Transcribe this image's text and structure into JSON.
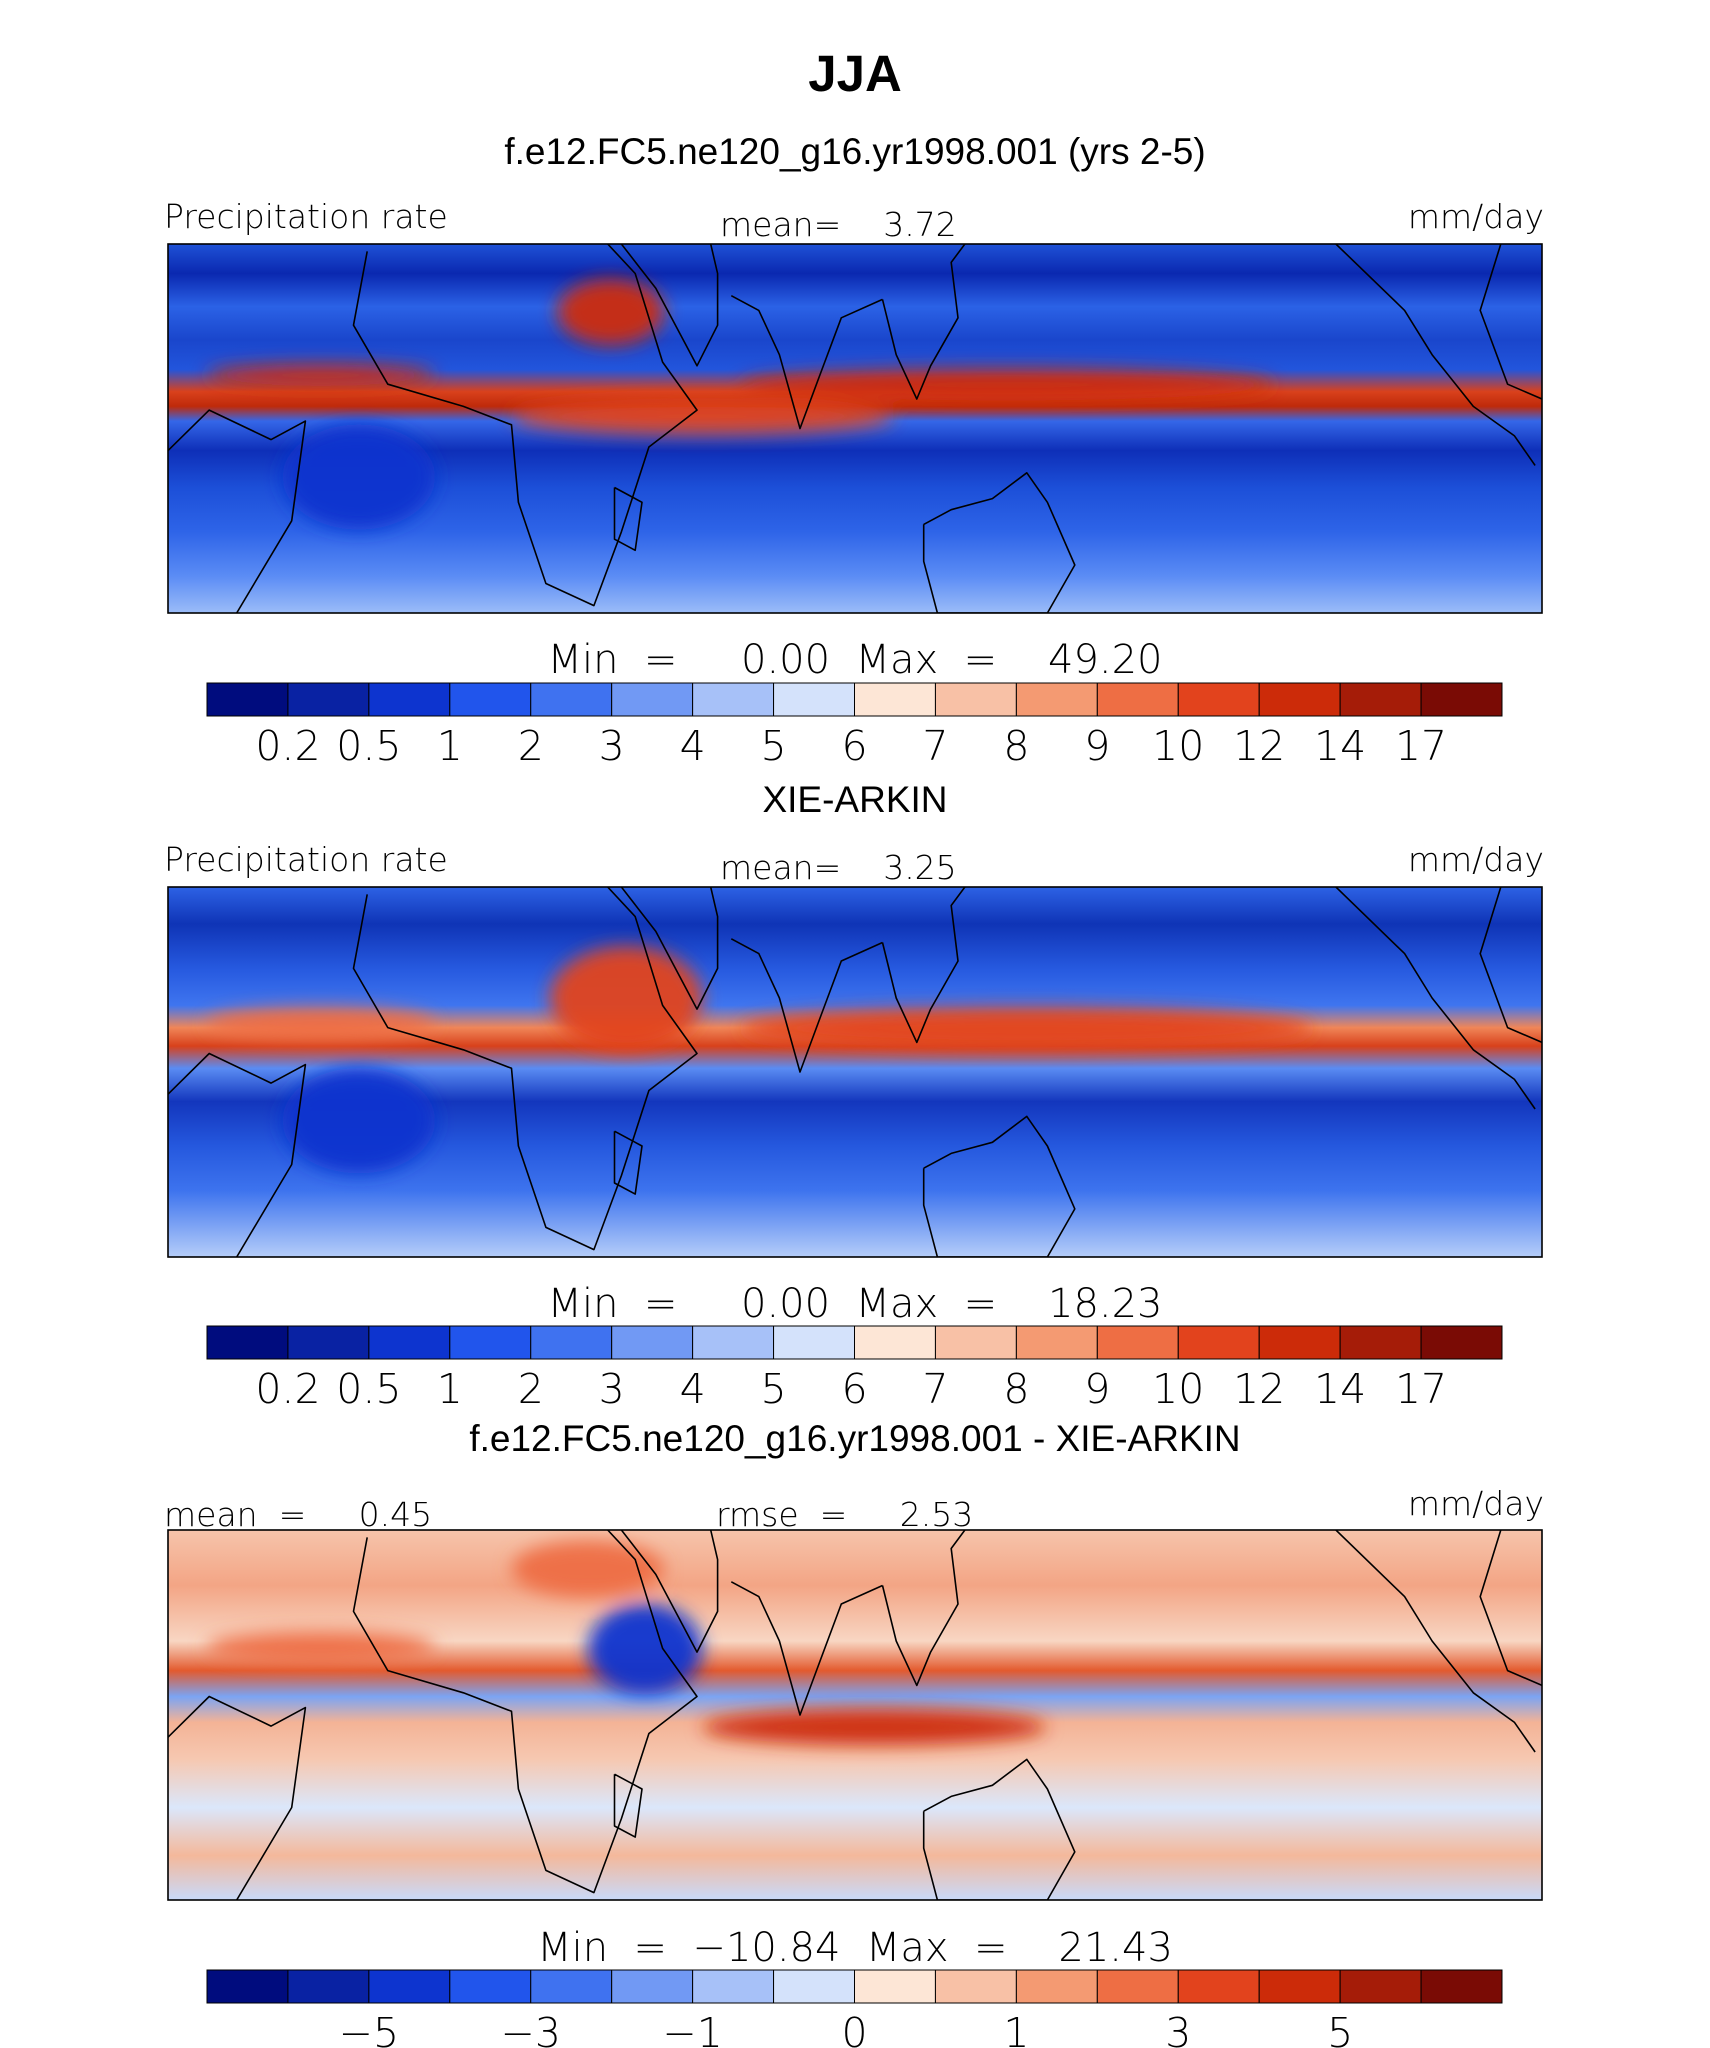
{
  "chart_data": [
    {
      "type": "heatmap",
      "title": "JJA",
      "subtitle": "f.e12.FC5.ne120_g16.yr1998.001 (yrs 2-5)",
      "left_label": "Precipitation rate",
      "center_label": "mean=    3.72",
      "right_label": "mm/day",
      "minmax_label": "Min  =     0.00  Max  =    49.20",
      "colorbar_ticks": [
        "0.2",
        "0.5",
        "1",
        "2",
        "3",
        "4",
        "5",
        "6",
        "7",
        "8",
        "9",
        "10",
        "12",
        "14",
        "17"
      ],
      "features": [
        {
          "kind": "band",
          "lon": [
            -20,
            40
          ],
          "lat": [
            10,
            12
          ],
          "value": 12
        },
        {
          "kind": "band",
          "lon": [
            60,
            160
          ],
          "lat": [
            0,
            5
          ],
          "value": 10
        },
        {
          "kind": "band",
          "lon": [
            120,
            260
          ],
          "lat": [
            7,
            11
          ],
          "value": 12
        },
        {
          "kind": "blob",
          "lon": [
            72,
            100
          ],
          "lat": [
            18,
            30
          ],
          "value": 12
        },
        {
          "kind": "blob",
          "lon": [
            -70,
            -50
          ],
          "lat": [
            -10,
            5
          ],
          "value": 0.5
        },
        {
          "kind": "blob",
          "lon": [
            0,
            40
          ],
          "lat": [
            -20,
            0
          ],
          "value": 0.5
        }
      ]
    },
    {
      "type": "heatmap",
      "title": "XIE-ARKIN",
      "left_label": "Precipitation rate",
      "center_label": "mean=    3.25",
      "right_label": "mm/day",
      "minmax_label": "Min  =     0.00  Max  =    18.23",
      "colorbar_ticks": [
        "0.2",
        "0.5",
        "1",
        "2",
        "3",
        "4",
        "5",
        "6",
        "7",
        "8",
        "9",
        "10",
        "12",
        "14",
        "17"
      ],
      "features": [
        {
          "kind": "band",
          "lon": [
            -20,
            40
          ],
          "lat": [
            8,
            12
          ],
          "value": 9
        },
        {
          "kind": "band",
          "lon": [
            120,
            270
          ],
          "lat": [
            6,
            12
          ],
          "value": 10
        },
        {
          "kind": "blob",
          "lon": [
            70,
            110
          ],
          "lat": [
            5,
            25
          ],
          "value": 10
        },
        {
          "kind": "blob",
          "lon": [
            0,
            40
          ],
          "lat": [
            -20,
            0
          ],
          "value": 0.5
        }
      ]
    },
    {
      "type": "heatmap",
      "title": "f.e12.FC5.ne120_g16.yr1998.001 - XIE-ARKIN",
      "left_label": "mean  =     0.45",
      "center_label": "rmse  =     2.53",
      "right_label": "mm/day",
      "minmax_label": "Min  =  −10.84  Max  =    21.43",
      "colorbar_ticks": [
        "−5",
        "−3",
        "−1",
        "0",
        "1",
        "3",
        "5"
      ],
      "features": [
        {
          "kind": "blob",
          "lon": [
            80,
            110
          ],
          "lat": [
            5,
            22
          ],
          "value": -5
        },
        {
          "kind": "band",
          "lon": [
            110,
            200
          ],
          "lat": [
            -5,
            0
          ],
          "value": 5
        },
        {
          "kind": "band",
          "lon": [
            -20,
            40
          ],
          "lat": [
            12,
            16
          ],
          "value": 3
        },
        {
          "kind": "blob",
          "lon": [
            60,
            100
          ],
          "lat": [
            25,
            35
          ],
          "value": 3
        }
      ]
    }
  ]
}
